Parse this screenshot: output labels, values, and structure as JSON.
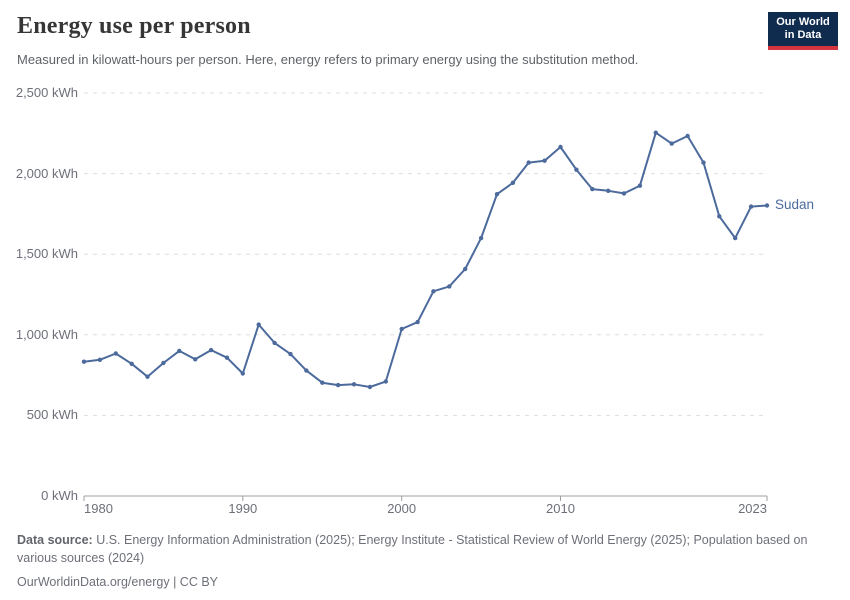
{
  "header": {
    "title": "Energy use per person",
    "subtitle": "Measured in kilowatt-hours per person. Here, energy refers to primary energy using the substitution method.",
    "logo": {
      "line1": "Our World",
      "line2": "in Data",
      "bg_color": "#0f2c4f",
      "accent_color": "#d4353e"
    }
  },
  "chart_data": {
    "type": "line",
    "title": "Energy use per person",
    "unit": "kWh",
    "xlabel": "",
    "ylabel": "",
    "xlim": [
      1980,
      2023
    ],
    "ylim": [
      0,
      2500
    ],
    "grid": "horizontal-dashed",
    "legend_position": "end-of-line",
    "xticks": [
      1980,
      1990,
      2000,
      2010,
      2023
    ],
    "yticks": [
      0,
      500,
      1000,
      1500,
      2000,
      2500
    ],
    "ytick_labels": [
      "0 kWh",
      "500 kWh",
      "1,000 kWh",
      "1,500 kWh",
      "2,000 kWh",
      "2,500 kWh"
    ],
    "series": [
      {
        "name": "Sudan",
        "color": "#4c6a9c",
        "x": [
          1980,
          1981,
          1982,
          1983,
          1984,
          1985,
          1986,
          1987,
          1988,
          1989,
          1990,
          1991,
          1992,
          1993,
          1994,
          1995,
          1996,
          1997,
          1998,
          1999,
          2000,
          2001,
          2002,
          2003,
          2004,
          2005,
          2006,
          2007,
          2008,
          2009,
          2010,
          2011,
          2012,
          2013,
          2014,
          2015,
          2016,
          2017,
          2018,
          2019,
          2020,
          2021,
          2022,
          2023
        ],
        "values": [
          833,
          845,
          884,
          820,
          740,
          825,
          900,
          848,
          905,
          858,
          760,
          1063,
          950,
          880,
          778,
          703,
          688,
          693,
          676,
          710,
          1036,
          1079,
          1270,
          1300,
          1408,
          1600,
          1872,
          1943,
          2068,
          2080,
          2165,
          2024,
          1904,
          1893,
          1877,
          1925,
          2254,
          2186,
          2233,
          2068,
          1735,
          1600,
          1795,
          1802
        ]
      }
    ],
    "axis_color": "#9e9fa3",
    "gridline_color": "#dedede"
  },
  "footer": {
    "source_label": "Data source:",
    "source_text": " U.S. Energy Information Administration (2025); Energy Institute - Statistical Review of World Energy (2025); Population based on various sources (2024)",
    "license": "OurWorldinData.org/energy | CC BY"
  }
}
